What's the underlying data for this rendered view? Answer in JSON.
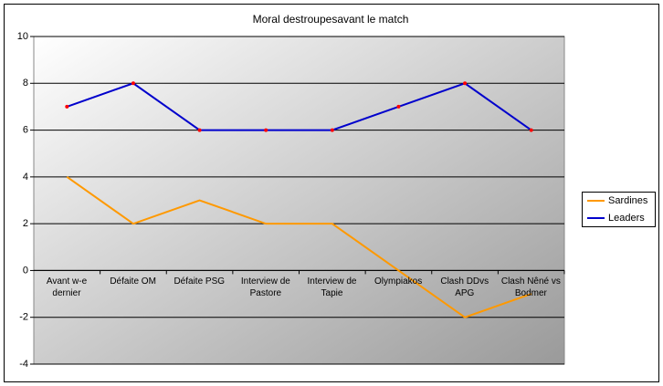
{
  "chart_data": {
    "type": "line",
    "title": "Moral destroupesavant le match",
    "categories": [
      "Avant w-e dernier",
      "Défaite OM",
      "Défaite PSG",
      "Interview de Pastore",
      "Interview de Tapie",
      "Olympiakos",
      "Clash DDvs APG",
      "Clash Nêné vs Bodmer"
    ],
    "series": [
      {
        "name": "Sardines",
        "color": "#ff9900",
        "values": [
          4,
          2,
          3,
          2,
          2,
          0,
          -2,
          -1
        ]
      },
      {
        "name": "Leaders",
        "color": "#0000cc",
        "marker_color": "#ff0000",
        "values": [
          7,
          8,
          6,
          6,
          6,
          7,
          8,
          6
        ]
      }
    ],
    "ylim": [
      -4,
      10
    ],
    "yticks": [
      -4,
      -2,
      0,
      2,
      4,
      6,
      8,
      10
    ],
    "grid": true,
    "legend": "right"
  }
}
